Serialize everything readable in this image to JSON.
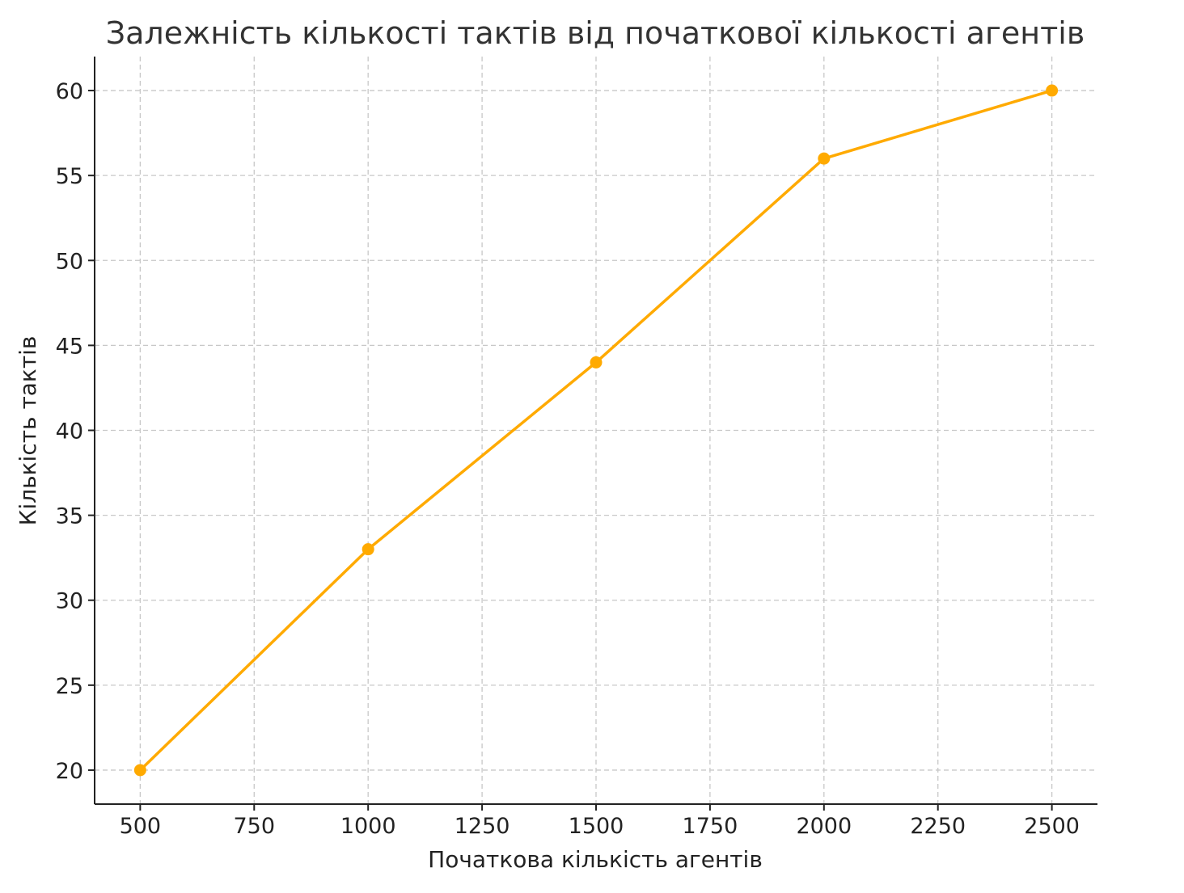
{
  "chart_data": {
    "type": "line",
    "title": "Залежність кількості тактів від початкової кількості агентів",
    "xlabel": "Початкова кількість агентів",
    "ylabel": "Кількість тактів",
    "x": [
      500,
      1000,
      1500,
      2000,
      2500
    ],
    "series": [
      {
        "values": [
          20,
          33,
          44,
          56,
          60
        ],
        "color": "#FFAA00",
        "marker": "circle"
      }
    ],
    "xlim": [
      400,
      2600
    ],
    "ylim": [
      18,
      62
    ],
    "xticks": [
      500,
      750,
      1000,
      1250,
      1500,
      1750,
      2000,
      2250,
      2500
    ],
    "yticks": [
      20,
      25,
      30,
      35,
      40,
      45,
      50,
      55,
      60
    ],
    "grid": true,
    "grid_style": "dashed",
    "legend": false
  }
}
